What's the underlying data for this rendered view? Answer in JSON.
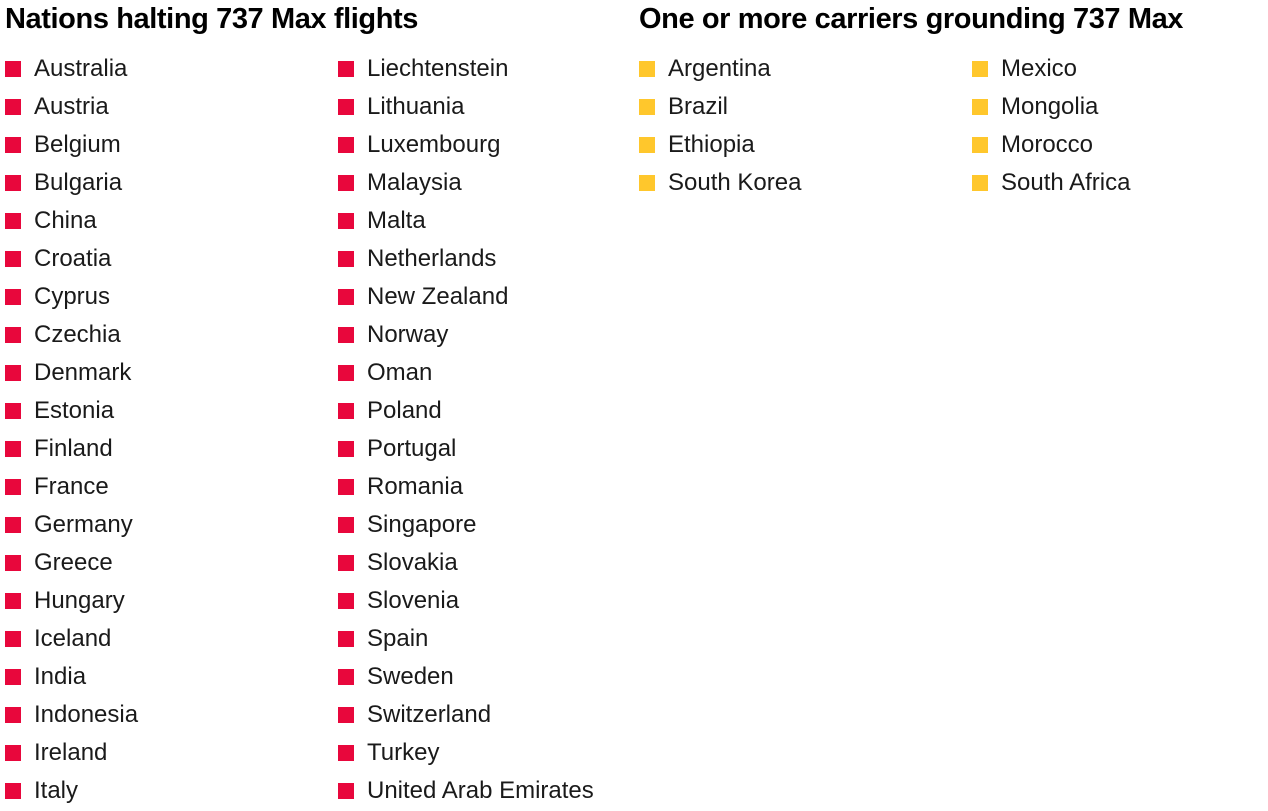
{
  "halting": {
    "title": "Nations halting 737 Max flights",
    "color": "#e8073c",
    "columns": [
      [
        "Australia",
        "Austria",
        "Belgium",
        "Bulgaria",
        "China",
        "Croatia",
        "Cyprus",
        "Czechia",
        "Denmark",
        "Estonia",
        "Finland",
        "France",
        "Germany",
        "Greece",
        "Hungary",
        "Iceland",
        "India",
        "Indonesia",
        "Ireland",
        "Italy"
      ],
      [
        "Liechtenstein",
        "Lithuania",
        "Luxembourg",
        "Malaysia",
        "Malta",
        "Netherlands",
        "New Zealand",
        "Norway",
        "Oman",
        "Poland",
        "Portugal",
        "Romania",
        "Singapore",
        "Slovakia",
        "Slovenia",
        "Spain",
        "Sweden",
        "Switzerland",
        "Turkey",
        "United Arab Emirates"
      ]
    ]
  },
  "carriers": {
    "title": "One or more carriers grounding 737 Max",
    "color": "#ffc72c",
    "columns": [
      [
        "Argentina",
        "Brazil",
        "Ethiopia",
        "South Korea"
      ],
      [
        "Mexico",
        "Mongolia",
        "Morocco",
        "South Africa"
      ]
    ]
  }
}
